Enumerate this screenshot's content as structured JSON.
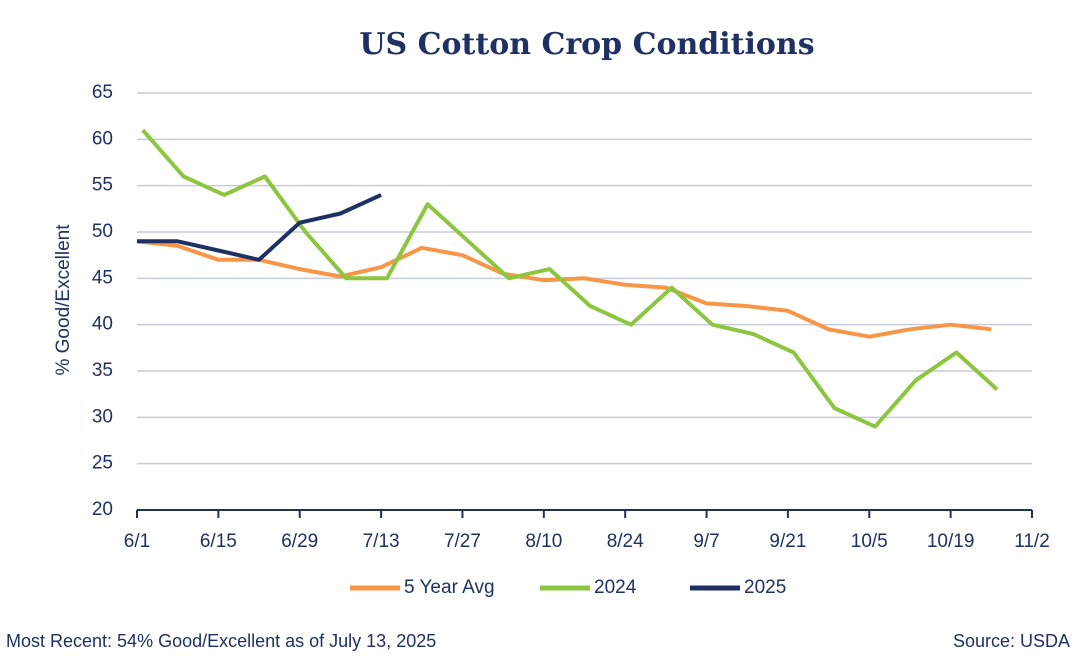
{
  "chart_data": {
    "type": "line",
    "title": "US Cotton Crop Conditions",
    "y_label": "% Good/Excellent",
    "note": "Most Recent: 54% Good/Excellent as of July 13, 2025",
    "source": "Source: USDA",
    "xlim": [
      "6/1",
      "11/2"
    ],
    "xticks": [
      "6/1",
      "6/15",
      "6/29",
      "7/13",
      "7/27",
      "8/10",
      "8/24",
      "9/7",
      "9/21",
      "10/5",
      "10/19",
      "11/2"
    ],
    "ylim": [
      20,
      65
    ],
    "yticks": [
      20,
      25,
      30,
      35,
      40,
      45,
      50,
      55,
      60,
      65
    ],
    "grid": true,
    "legend": "bottom",
    "series": [
      {
        "name": "5 Year Avg",
        "color": "#f79646",
        "x": [
          "6/1",
          "6/8",
          "6/15",
          "6/22",
          "6/29",
          "7/6",
          "7/13",
          "7/20",
          "7/27",
          "8/3",
          "8/10",
          "8/17",
          "8/24",
          "8/31",
          "9/7",
          "9/14",
          "9/21",
          "9/28",
          "10/5",
          "10/12",
          "10/19",
          "10/26"
        ],
        "values": [
          49,
          48.5,
          47,
          47,
          46,
          45.2,
          46.2,
          48.3,
          47.5,
          45.5,
          44.8,
          45,
          44.3,
          44,
          42.3,
          42,
          41.5,
          39.5,
          38.7,
          39.5,
          40,
          39.5
        ]
      },
      {
        "name": "2024",
        "color": "#8cc63f",
        "x": [
          "6/2",
          "6/9",
          "6/16",
          "6/23",
          "6/30",
          "7/7",
          "7/14",
          "7/21",
          "7/28",
          "8/4",
          "8/11",
          "8/18",
          "8/25",
          "9/1",
          "9/8",
          "9/15",
          "9/22",
          "9/29",
          "10/6",
          "10/13",
          "10/20",
          "10/27"
        ],
        "values": [
          61,
          56,
          54,
          56,
          50,
          45,
          45,
          53,
          49,
          45,
          46,
          42,
          40,
          44,
          40,
          39,
          37,
          31,
          29,
          34,
          37,
          33
        ]
      },
      {
        "name": "2025",
        "color": "#1f3064",
        "x": [
          "6/1",
          "6/8",
          "6/15",
          "6/22",
          "6/29",
          "7/6",
          "7/13"
        ],
        "values": [
          49,
          49,
          48,
          47,
          51,
          52,
          54
        ]
      }
    ]
  }
}
